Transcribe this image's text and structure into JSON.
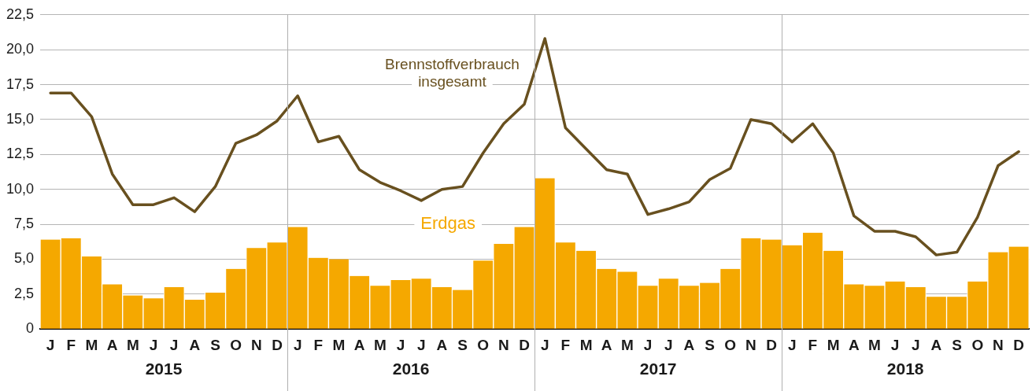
{
  "chart_data": {
    "type": "bar",
    "categories": [
      "J",
      "F",
      "M",
      "A",
      "M",
      "J",
      "J",
      "A",
      "S",
      "O",
      "N",
      "D",
      "J",
      "F",
      "M",
      "A",
      "M",
      "J",
      "J",
      "A",
      "S",
      "O",
      "N",
      "D",
      "J",
      "F",
      "M",
      "A",
      "M",
      "J",
      "J",
      "A",
      "S",
      "O",
      "N",
      "D",
      "J",
      "F",
      "M",
      "A",
      "M",
      "J",
      "J",
      "A",
      "S",
      "O",
      "N",
      "D"
    ],
    "series": [
      {
        "name": "Erdgas",
        "color": "#f5a800",
        "values": [
          6.4,
          6.5,
          5.2,
          3.2,
          2.4,
          2.2,
          3.0,
          2.1,
          2.6,
          4.3,
          5.8,
          6.2,
          7.3,
          5.1,
          5.0,
          3.8,
          3.1,
          3.5,
          3.6,
          3.0,
          2.8,
          4.9,
          6.1,
          7.3,
          10.8,
          6.2,
          5.6,
          4.3,
          4.1,
          3.1,
          3.6,
          3.1,
          3.3,
          4.3,
          6.5,
          6.4,
          6.0,
          6.9,
          5.6,
          3.2,
          3.1,
          3.4,
          3.0,
          2.3,
          2.3,
          3.4,
          5.5,
          5.9
        ]
      },
      {
        "name": "Brennstoffverbrauch insgesamt",
        "type": "line",
        "color": "#68501f",
        "values": [
          16.9,
          16.9,
          15.2,
          11.1,
          8.9,
          8.9,
          9.4,
          8.4,
          10.2,
          13.3,
          13.9,
          14.9,
          16.7,
          13.4,
          13.8,
          11.4,
          10.5,
          9.9,
          9.2,
          10.0,
          10.2,
          12.6,
          14.7,
          16.1,
          20.8,
          14.4,
          12.9,
          11.4,
          11.1,
          8.2,
          8.6,
          9.1,
          10.7,
          11.5,
          15.0,
          14.7,
          13.4,
          14.7,
          12.6,
          8.1,
          7.0,
          7.0,
          6.6,
          5.3,
          5.5,
          8.0,
          11.7,
          12.7
        ]
      }
    ],
    "ylim": [
      0,
      22.5
    ],
    "yticks": [
      0,
      {
        "value": 2.5,
        "label": "2,5"
      },
      {
        "value": 5,
        "label": "5,0"
      },
      {
        "value": 7.5,
        "label": "7,5"
      },
      {
        "value": 10,
        "label": "10,0"
      },
      {
        "value": 12.5,
        "label": "12,5"
      },
      {
        "value": 15,
        "label": "15,0"
      },
      {
        "value": 17.5,
        "label": "17,5"
      },
      {
        "value": 20,
        "label": "20,0"
      },
      {
        "value": 22.5,
        "label": "22,5"
      }
    ],
    "annotations": [
      "2015",
      "2016",
      "2017",
      "2018"
    ],
    "grid": "y",
    "legend": false,
    "marker": "none",
    "line_style": "solid"
  }
}
